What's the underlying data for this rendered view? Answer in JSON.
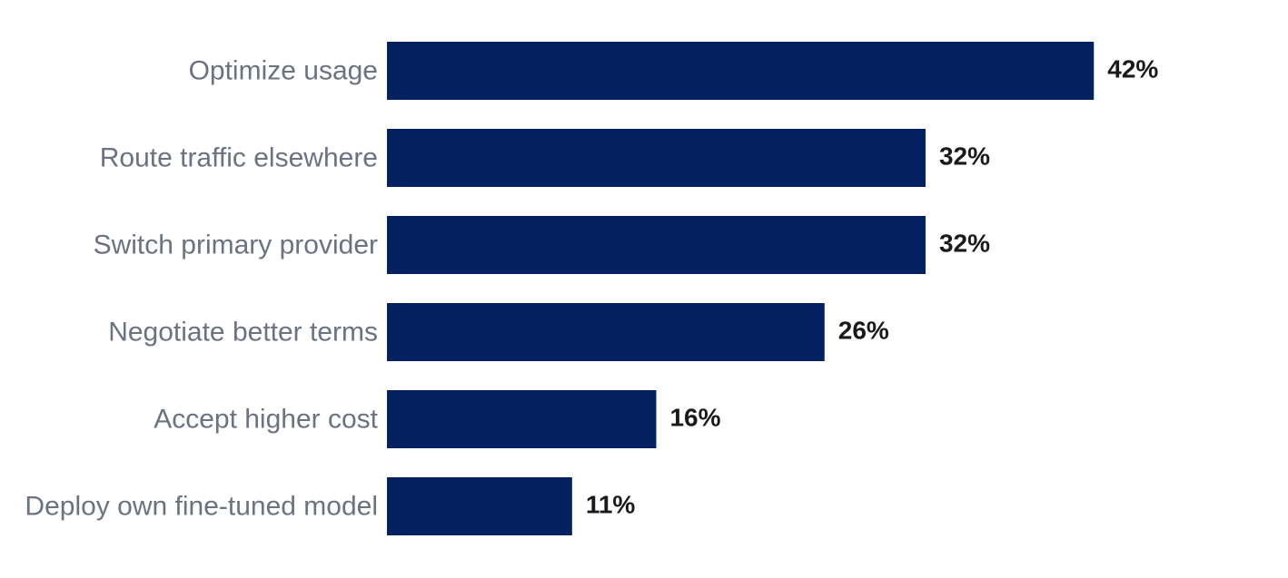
{
  "chart_data": {
    "type": "bar",
    "orientation": "horizontal",
    "categories": [
      "Optimize usage",
      "Route traffic elsewhere",
      "Switch primary provider",
      "Negotiate better terms",
      "Accept higher cost",
      "Deploy own fine-tuned model"
    ],
    "values": [
      42,
      32,
      32,
      26,
      16,
      11
    ],
    "value_labels": [
      "42%",
      "32%",
      "32%",
      "26%",
      "16%",
      "11%"
    ],
    "unit": "%",
    "xlim": [
      0,
      60
    ],
    "grid": false,
    "legend": "none",
    "title": "",
    "xlabel": "",
    "ylabel": "",
    "colors": {
      "bar": "#03205f",
      "category_text": "#6b7280",
      "value_text": "#1a1a1a"
    }
  }
}
